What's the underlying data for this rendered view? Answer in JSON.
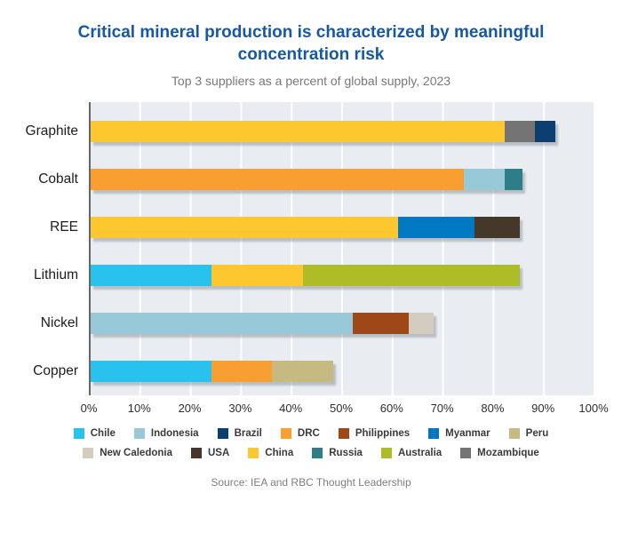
{
  "header": {
    "title": "Critical mineral production is characterized by meaningful concentration risk",
    "subtitle": "Top 3 suppliers as a percent of global supply, 2023"
  },
  "footer": {
    "source": "Source: IEA and RBC Thought Leadership"
  },
  "colors": {
    "title_blue": "#1758a5",
    "plot_background": "#e9edf1",
    "gridline": "#ffffff",
    "axis_line": "#64666a",
    "countries": {
      "Chile": "#29c1ee",
      "Indonesia": "#98c9d8",
      "Brazil": "#0d3e72",
      "DRC": "#f99e31",
      "Philippines": "#a04717",
      "Myanmar": "#0078c2",
      "Peru": "#c6b981",
      "New Caledonia": "#d3ccbf",
      "USA": "#45382b",
      "China": "#fdc72f",
      "Russia": "#2d7e86",
      "Australia": "#aebc27",
      "Mozambique": "#747474"
    }
  },
  "chart_data": {
    "type": "bar",
    "orientation": "horizontal",
    "stacked": true,
    "title": "Critical mineral production is characterized by meaningful concentration risk",
    "subtitle": "Top 3 suppliers as a percent of global supply, 2023",
    "xlabel": "",
    "ylabel": "",
    "xlim": [
      0,
      100
    ],
    "x_tick_labels": [
      "0%",
      "10%",
      "20%",
      "30%",
      "40%",
      "50%",
      "60%",
      "70%",
      "80%",
      "90%",
      "100%"
    ],
    "grid": "vertical-white-on-gray",
    "legend_position": "bottom",
    "categories": [
      "Graphite",
      "Cobalt",
      "REE",
      "Lithium",
      "Nickel",
      "Copper"
    ],
    "rows": [
      {
        "category": "Graphite",
        "segments": [
          {
            "name": "China",
            "value": 82
          },
          {
            "name": "Mozambique",
            "value": 6
          },
          {
            "name": "Brazil",
            "value": 4
          }
        ]
      },
      {
        "category": "Cobalt",
        "segments": [
          {
            "name": "DRC",
            "value": 74
          },
          {
            "name": "Indonesia",
            "value": 8
          },
          {
            "name": "Russia",
            "value": 3.5
          }
        ]
      },
      {
        "category": "REE",
        "segments": [
          {
            "name": "China",
            "value": 61
          },
          {
            "name": "Myanmar",
            "value": 15
          },
          {
            "name": "USA",
            "value": 9
          }
        ]
      },
      {
        "category": "Lithium",
        "segments": [
          {
            "name": "Chile",
            "value": 24
          },
          {
            "name": "China",
            "value": 18
          },
          {
            "name": "Australia",
            "value": 43
          }
        ]
      },
      {
        "category": "Nickel",
        "segments": [
          {
            "name": "Indonesia",
            "value": 52
          },
          {
            "name": "Philippines",
            "value": 11
          },
          {
            "name": "New Caledonia",
            "value": 5
          }
        ]
      },
      {
        "category": "Copper",
        "segments": [
          {
            "name": "Chile",
            "value": 24
          },
          {
            "name": "DRC",
            "value": 12
          },
          {
            "name": "Peru",
            "value": 12
          }
        ]
      }
    ],
    "legend_rows": [
      [
        "Chile",
        "Indonesia",
        "Brazil",
        "DRC",
        "Philippines",
        "Myanmar",
        "Peru"
      ],
      [
        "New Caledonia",
        "USA",
        "China",
        "Russia",
        "Australia",
        "Mozambique"
      ]
    ]
  }
}
